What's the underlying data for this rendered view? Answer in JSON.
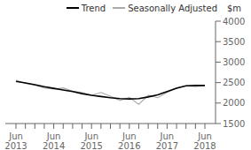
{
  "chart_data": {
    "type": "line",
    "ylabel": "$m",
    "categories": [
      "Jun\n2013",
      null,
      null,
      null,
      "Jun\n2014",
      null,
      null,
      null,
      "Jun\n2015",
      null,
      null,
      null,
      "Jun\n2016",
      null,
      null,
      null,
      "Jun\n2017",
      null,
      null,
      null,
      "Jun\n2018"
    ],
    "series": [
      {
        "name": "Seasonally Adjusted",
        "color": "#aaaaaa",
        "values": [
          2560,
          2480,
          2440,
          2370,
          2340,
          2370,
          2290,
          2260,
          2190,
          2260,
          2170,
          2060,
          2140,
          1970,
          2190,
          2130,
          2260,
          2370,
          2420,
          2400,
          2430
        ]
      },
      {
        "name": "Trend",
        "color": "#000000",
        "values": [
          2530,
          2490,
          2450,
          2400,
          2360,
          2320,
          2280,
          2230,
          2190,
          2160,
          2130,
          2110,
          2100,
          2110,
          2150,
          2200,
          2280,
          2360,
          2420,
          2430,
          2430
        ]
      }
    ],
    "ylim": [
      1500,
      4000
    ],
    "yticks": [
      1500,
      2000,
      2500,
      3000,
      3500,
      4000
    ],
    "grid": false,
    "legend": "upper right"
  }
}
